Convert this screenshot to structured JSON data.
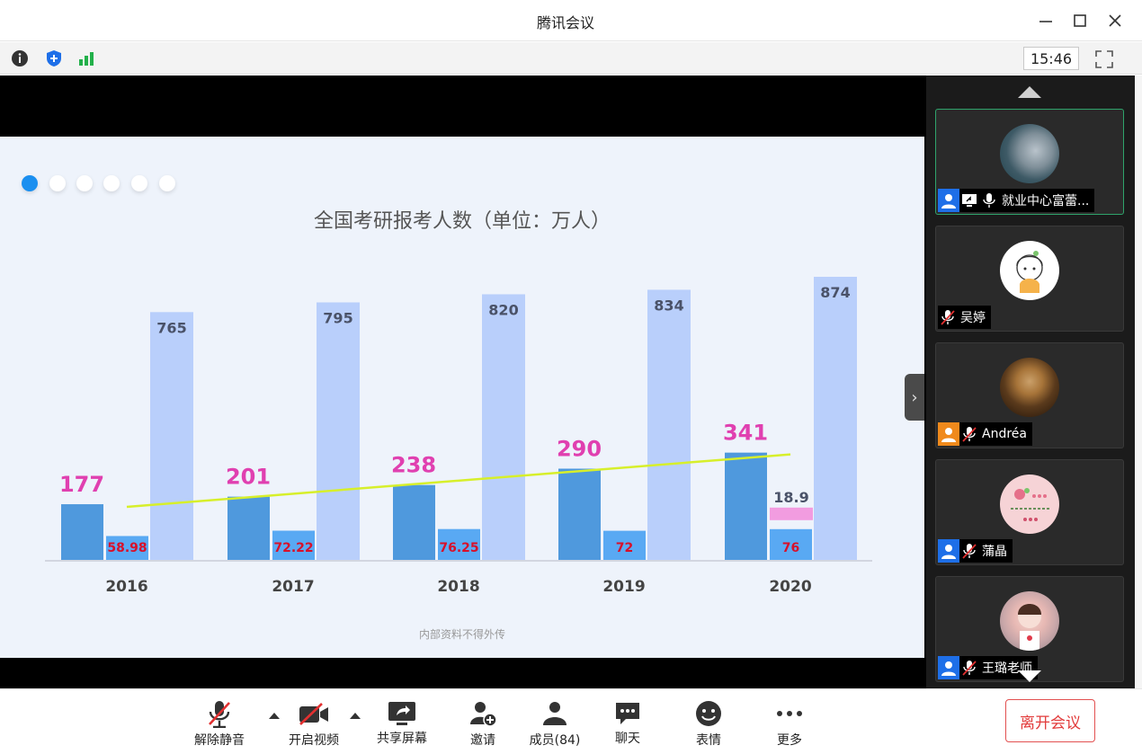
{
  "window": {
    "title": "腾讯会议",
    "minimize_icon": "minimize-icon",
    "maximize_icon": "maximize-icon",
    "close_icon": "close-icon"
  },
  "toolbar": {
    "time": "15:46",
    "icons": [
      "info-icon",
      "shield-icon",
      "signal-icon",
      "fullscreen-icon"
    ]
  },
  "slide": {
    "watermark": "内部资料不得外传",
    "pager_dots": 6,
    "active_dot": 0
  },
  "chart_data": {
    "type": "bar",
    "title": "全国考研报考人数（单位：万人）",
    "categories": [
      "2016",
      "2017",
      "2018",
      "2019",
      "2020"
    ],
    "series": [
      {
        "values": [
          177,
          201,
          238,
          290,
          341
        ],
        "color": "#4f99dd",
        "label_color": "#e040b0"
      },
      {
        "values": [
          58.98,
          72.22,
          76.25,
          72,
          76
        ],
        "color": "#59a9f3",
        "label_color": "#d8102a"
      },
      {
        "values": [
          765,
          795,
          820,
          834,
          874
        ],
        "color": "#b9cffb",
        "label_color": "#4a5268"
      }
    ],
    "extra_bar": {
      "category": "2020",
      "value": 18.9,
      "color": "#f29ce0"
    },
    "trendline": {
      "on_series": 0,
      "color": "#d7ef2a"
    },
    "grid": false
  },
  "participants": [
    {
      "name": "就业中心富蕾...",
      "role": "host",
      "sharing": true,
      "muted": false,
      "active": true,
      "avatar": "ocean-avatar"
    },
    {
      "name": "吴婷",
      "role": "",
      "sharing": false,
      "muted": true,
      "active": false,
      "avatar": "cartoon-girl-avatar"
    },
    {
      "name": "Andréa",
      "role": "cohost",
      "sharing": false,
      "muted": true,
      "active": false,
      "avatar": "photo-woman-avatar"
    },
    {
      "name": "蒲晶",
      "role": "host",
      "sharing": false,
      "muted": true,
      "active": false,
      "avatar": "flower-avatar"
    },
    {
      "name": "王璐老师",
      "role": "host",
      "sharing": false,
      "muted": true,
      "active": false,
      "avatar": "child-photo-avatar"
    }
  ],
  "bottom": {
    "unmute": "解除静音",
    "video": "开启视频",
    "share": "共享屏幕",
    "invite": "邀请",
    "members": "成员(84)",
    "chat": "聊天",
    "reactions": "表情",
    "more": "更多",
    "leave": "离开会议"
  }
}
